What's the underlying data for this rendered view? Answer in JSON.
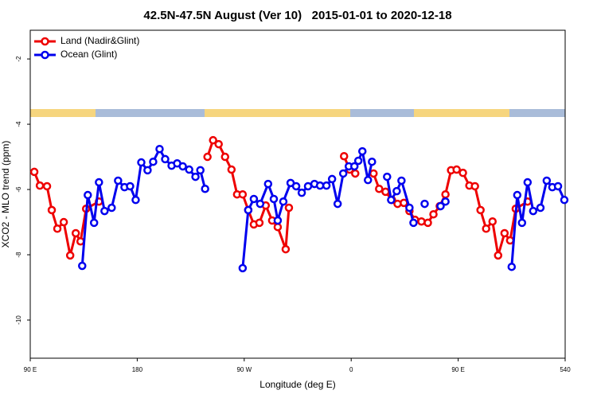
{
  "chart_data": {
    "type": "line",
    "title": "42.5N-47.5N August (Ver 10)   2015-01-01 to 2020-12-18",
    "xlabel": "Longitude (deg E)",
    "ylabel": "XCO2 - MLO trend (ppm)",
    "xlim": [
      90,
      540
    ],
    "xticks": [
      {
        "value": 90,
        "label": "90 E"
      },
      180,
      {
        "value": 270,
        "label": "90 W"
      },
      {
        "value": 360,
        "label": "0"
      },
      {
        "value": 450,
        "label": "90 E"
      },
      540
    ],
    "ylim": [
      -11.17,
      -1.12
    ],
    "yticks": [
      -2,
      -4,
      -6,
      -8,
      -10
    ],
    "legend": "top-left",
    "series": [
      {
        "name": "Land (Nadir&Glint)",
        "color": "#ee0000",
        "x": [
          93.4,
          98.1,
          104.1,
          108.1,
          112.8,
          118.2,
          123.6,
          128.3,
          132.3,
          137.0,
          147.8,
          null,
          239.1,
          243.8,
          248.5,
          253.9,
          259.3,
          264.0,
          268.7,
          273.4,
          278.1,
          282.8,
          288.1,
          293.5,
          298.2,
          304.9,
          307.6,
          null,
          354.0,
          358.7,
          363.4,
          null,
          378.8,
          383.5,
          388.9,
          394.3,
          399.0,
          404.3,
          409.0,
          413.7,
          419.1,
          424.5,
          429.2,
          434.5,
          439.3,
          444.0,
          448.7,
          454.0,
          459.4,
          464.1,
          468.8,
          473.5,
          478.9,
          483.6,
          489.0,
          493.7,
          498.4,
          508.4
        ],
        "values": [
          -5.46,
          -5.88,
          -5.9,
          -6.63,
          -7.2,
          -7.0,
          -8.02,
          -7.34,
          -7.59,
          -6.59,
          -6.37,
          null,
          -5.0,
          -4.49,
          -4.61,
          -5.0,
          -5.39,
          -6.15,
          -6.15,
          -6.63,
          -7.07,
          -7.02,
          -6.49,
          -6.95,
          -7.15,
          -7.83,
          -6.56,
          null,
          -4.98,
          -5.39,
          -5.51,
          null,
          -5.51,
          -5.98,
          -6.07,
          -6.32,
          -6.44,
          -6.41,
          -6.66,
          -6.93,
          -6.98,
          -7.02,
          -6.76,
          -6.51,
          -6.15,
          -5.41,
          -5.39,
          -5.49,
          -5.88,
          -5.9,
          -6.63,
          -7.2,
          -6.98,
          -8.02,
          -7.34,
          -7.56,
          -6.59,
          -6.37
        ]
      },
      {
        "name": "Ocean (Glint)",
        "color": "#0000ee",
        "x": [
          133.7,
          138.4,
          143.7,
          147.8,
          152.5,
          158.5,
          163.9,
          169.3,
          174.0,
          178.7,
          183.4,
          188.7,
          193.4,
          198.8,
          203.5,
          208.9,
          213.6,
          218.3,
          223.7,
          229.0,
          233.1,
          237.1,
          null,
          268.7,
          273.4,
          278.1,
          283.4,
          290.1,
          294.9,
          298.2,
          302.9,
          309.0,
          313.7,
          318.4,
          323.7,
          329.1,
          333.8,
          339.2,
          343.9,
          348.6,
          353.3,
          358.0,
          362.7,
          366.0,
          369.4,
          374.1,
          377.5,
          null,
          390.2,
          393.6,
          398.3,
          402.3,
          409.0,
          412.4,
          null,
          421.8,
          null,
          435.2,
          439.3,
          null,
          495.0,
          499.7,
          503.7,
          508.4,
          513.1,
          519.2,
          524.5,
          529.2,
          534.0,
          539.3
        ],
        "values": [
          -8.34,
          -6.17,
          -7.02,
          -5.78,
          -6.66,
          -6.56,
          -5.73,
          -5.93,
          -5.9,
          -6.32,
          -5.17,
          -5.41,
          -5.15,
          -4.76,
          -5.07,
          -5.27,
          -5.2,
          -5.29,
          -5.39,
          -5.61,
          -5.41,
          -5.98,
          null,
          -8.41,
          -6.63,
          -6.29,
          -6.44,
          -5.83,
          -6.29,
          -6.95,
          -6.37,
          -5.8,
          -5.9,
          -6.1,
          -5.9,
          -5.83,
          -5.88,
          -5.88,
          -5.68,
          -6.44,
          -5.51,
          -5.29,
          -5.29,
          -5.12,
          -4.83,
          -5.71,
          -5.15,
          null,
          -5.61,
          -6.32,
          -6.05,
          -5.73,
          -6.56,
          -7.02,
          null,
          -6.44,
          null,
          -6.51,
          -6.37,
          null,
          -8.37,
          -6.17,
          -7.02,
          -5.78,
          -6.66,
          -6.56,
          -5.73,
          -5.93,
          -5.9,
          -6.32
        ]
      }
    ]
  }
}
